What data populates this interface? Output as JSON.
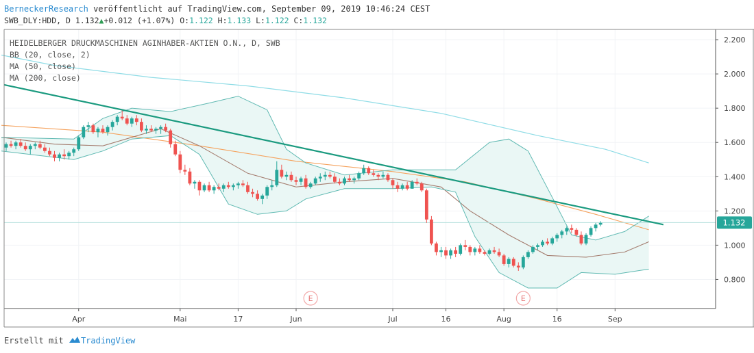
{
  "header": {
    "author": "BerneckerResearch",
    "published_text": "veröffentlicht auf TradingView.com, September 09, 2019 10:46:24 CEST",
    "symbol": "SWB_DLY:HDD, D",
    "last": "1.132",
    "change": "+0.012 (+1.07%)",
    "o_label": "O:",
    "o_value": "1.122",
    "h_label": "H:",
    "h_value": "1.133",
    "l_label": "L:",
    "l_value": "1.122",
    "c_label": "C:",
    "c_value": "1.132"
  },
  "legend": {
    "title": "HEIDELBERGER DRUCKMASCHINEN AGINHABER-AKTIEN O.N., D, SWB",
    "bb": "BB (20, close, 2)",
    "ma50": "MA (50, close)",
    "ma200": "MA (200, close)"
  },
  "footer": {
    "made_with": "Erstellt mit",
    "brand": "TradingView"
  },
  "colors": {
    "up": "#26a69a",
    "down": "#ef5350",
    "trendline": "#1a9a7f",
    "bb": "#5fb9b2",
    "bb_fill": "#eaf7f5",
    "ma50": "#a47c6e",
    "ma200": "#8fdce6",
    "ma_orange": "#f5a25d",
    "price_label_bg": "#26a69a"
  },
  "chart_data": {
    "type": "candlestick",
    "y_axis": {
      "ticks": [
        "2.200",
        "2.000",
        "1.800",
        "1.600",
        "1.400",
        "1.200",
        "1.000",
        "0.800"
      ],
      "range": [
        0.63,
        2.26
      ],
      "position": "right"
    },
    "x_axis": {
      "ticks": [
        "Apr",
        "Mai",
        "17",
        "Jun",
        "Jul",
        "16",
        "Aug",
        "16",
        "Sep"
      ]
    },
    "last_price_label": "1.132",
    "earnings_markers": [
      "E",
      "E"
    ],
    "candles": [
      [
        1.57,
        1.6,
        1.55,
        1.59
      ],
      [
        1.59,
        1.61,
        1.57,
        1.58
      ],
      [
        1.58,
        1.61,
        1.56,
        1.6
      ],
      [
        1.6,
        1.62,
        1.57,
        1.58
      ],
      [
        1.58,
        1.6,
        1.55,
        1.56
      ],
      [
        1.56,
        1.59,
        1.53,
        1.58
      ],
      [
        1.58,
        1.6,
        1.56,
        1.59
      ],
      [
        1.59,
        1.61,
        1.56,
        1.57
      ],
      [
        1.57,
        1.59,
        1.54,
        1.55
      ],
      [
        1.55,
        1.57,
        1.52,
        1.53
      ],
      [
        1.53,
        1.55,
        1.49,
        1.51
      ],
      [
        1.51,
        1.54,
        1.49,
        1.53
      ],
      [
        1.53,
        1.56,
        1.5,
        1.52
      ],
      [
        1.52,
        1.55,
        1.5,
        1.54
      ],
      [
        1.54,
        1.57,
        1.52,
        1.56
      ],
      [
        1.56,
        1.64,
        1.55,
        1.63
      ],
      [
        1.63,
        1.7,
        1.62,
        1.69
      ],
      [
        1.69,
        1.72,
        1.66,
        1.7
      ],
      [
        1.7,
        1.71,
        1.65,
        1.66
      ],
      [
        1.66,
        1.69,
        1.63,
        1.68
      ],
      [
        1.68,
        1.7,
        1.65,
        1.66
      ],
      [
        1.66,
        1.7,
        1.64,
        1.69
      ],
      [
        1.69,
        1.73,
        1.67,
        1.72
      ],
      [
        1.72,
        1.76,
        1.7,
        1.75
      ],
      [
        1.75,
        1.79,
        1.73,
        1.74
      ],
      [
        1.74,
        1.76,
        1.7,
        1.71
      ],
      [
        1.71,
        1.75,
        1.69,
        1.74
      ],
      [
        1.74,
        1.76,
        1.7,
        1.72
      ],
      [
        1.72,
        1.74,
        1.66,
        1.67
      ],
      [
        1.67,
        1.7,
        1.65,
        1.68
      ],
      [
        1.68,
        1.7,
        1.66,
        1.67
      ],
      [
        1.67,
        1.69,
        1.65,
        1.68
      ],
      [
        1.68,
        1.7,
        1.65,
        1.69
      ],
      [
        1.69,
        1.71,
        1.66,
        1.67
      ],
      [
        1.67,
        1.68,
        1.57,
        1.59
      ],
      [
        1.59,
        1.61,
        1.52,
        1.53
      ],
      [
        1.53,
        1.55,
        1.42,
        1.44
      ],
      [
        1.44,
        1.47,
        1.41,
        1.43
      ],
      [
        1.43,
        1.45,
        1.35,
        1.36
      ],
      [
        1.36,
        1.38,
        1.33,
        1.37
      ],
      [
        1.37,
        1.38,
        1.29,
        1.32
      ],
      [
        1.32,
        1.36,
        1.31,
        1.35
      ],
      [
        1.35,
        1.37,
        1.31,
        1.32
      ],
      [
        1.32,
        1.35,
        1.3,
        1.34
      ],
      [
        1.34,
        1.36,
        1.32,
        1.33
      ],
      [
        1.33,
        1.36,
        1.31,
        1.35
      ],
      [
        1.35,
        1.37,
        1.33,
        1.34
      ],
      [
        1.34,
        1.36,
        1.32,
        1.35
      ],
      [
        1.35,
        1.37,
        1.33,
        1.36
      ],
      [
        1.36,
        1.38,
        1.34,
        1.35
      ],
      [
        1.35,
        1.37,
        1.3,
        1.31
      ],
      [
        1.31,
        1.33,
        1.28,
        1.3
      ],
      [
        1.3,
        1.32,
        1.26,
        1.27
      ],
      [
        1.27,
        1.3,
        1.24,
        1.29
      ],
      [
        1.29,
        1.35,
        1.27,
        1.34
      ],
      [
        1.34,
        1.38,
        1.32,
        1.35
      ],
      [
        1.35,
        1.49,
        1.34,
        1.44
      ],
      [
        1.44,
        1.47,
        1.39,
        1.4
      ],
      [
        1.4,
        1.43,
        1.38,
        1.41
      ],
      [
        1.41,
        1.43,
        1.37,
        1.38
      ],
      [
        1.38,
        1.4,
        1.35,
        1.37
      ],
      [
        1.37,
        1.4,
        1.35,
        1.39
      ],
      [
        1.39,
        1.41,
        1.33,
        1.34
      ],
      [
        1.34,
        1.37,
        1.33,
        1.36
      ],
      [
        1.36,
        1.4,
        1.35,
        1.39
      ],
      [
        1.39,
        1.42,
        1.37,
        1.4
      ],
      [
        1.4,
        1.43,
        1.38,
        1.41
      ],
      [
        1.41,
        1.43,
        1.39,
        1.4
      ],
      [
        1.4,
        1.42,
        1.36,
        1.37
      ],
      [
        1.37,
        1.39,
        1.35,
        1.36
      ],
      [
        1.36,
        1.4,
        1.35,
        1.39
      ],
      [
        1.39,
        1.41,
        1.37,
        1.38
      ],
      [
        1.38,
        1.4,
        1.36,
        1.39
      ],
      [
        1.39,
        1.43,
        1.38,
        1.42
      ],
      [
        1.42,
        1.47,
        1.41,
        1.45
      ],
      [
        1.45,
        1.46,
        1.41,
        1.42
      ],
      [
        1.42,
        1.44,
        1.4,
        1.41
      ],
      [
        1.41,
        1.42,
        1.38,
        1.4
      ],
      [
        1.4,
        1.43,
        1.39,
        1.41
      ],
      [
        1.41,
        1.42,
        1.37,
        1.38
      ],
      [
        1.38,
        1.39,
        1.33,
        1.35
      ],
      [
        1.35,
        1.37,
        1.31,
        1.33
      ],
      [
        1.33,
        1.36,
        1.32,
        1.35
      ],
      [
        1.35,
        1.37,
        1.32,
        1.33
      ],
      [
        1.33,
        1.38,
        1.33,
        1.37
      ],
      [
        1.37,
        1.39,
        1.35,
        1.36
      ],
      [
        1.36,
        1.37,
        1.31,
        1.32
      ],
      [
        1.32,
        1.33,
        1.13,
        1.15
      ],
      [
        1.15,
        1.17,
        1.0,
        1.01
      ],
      [
        1.01,
        1.02,
        0.94,
        0.96
      ],
      [
        0.96,
        0.99,
        0.93,
        0.97
      ],
      [
        0.97,
        0.99,
        0.92,
        0.94
      ],
      [
        0.94,
        0.98,
        0.92,
        0.97
      ],
      [
        0.97,
        0.99,
        0.93,
        0.95
      ],
      [
        0.95,
        1.01,
        0.94,
        1.0
      ],
      [
        1.0,
        1.03,
        0.97,
        0.99
      ],
      [
        0.99,
        1.0,
        0.94,
        0.96
      ],
      [
        0.96,
        0.99,
        0.94,
        0.98
      ],
      [
        0.98,
        1.0,
        0.95,
        0.96
      ],
      [
        0.96,
        0.97,
        0.94,
        0.95
      ],
      [
        0.95,
        0.98,
        0.94,
        0.97
      ],
      [
        0.97,
        0.99,
        0.95,
        0.96
      ],
      [
        0.96,
        0.98,
        0.93,
        0.94
      ],
      [
        0.94,
        0.95,
        0.88,
        0.89
      ],
      [
        0.89,
        0.93,
        0.87,
        0.92
      ],
      [
        0.92,
        0.93,
        0.87,
        0.88
      ],
      [
        0.88,
        0.9,
        0.85,
        0.87
      ],
      [
        0.87,
        0.94,
        0.86,
        0.93
      ],
      [
        0.93,
        0.97,
        0.92,
        0.96
      ],
      [
        0.96,
        1.0,
        0.95,
        0.99
      ],
      [
        0.99,
        1.01,
        0.97,
        1.0
      ],
      [
        1.0,
        1.03,
        0.99,
        1.02
      ],
      [
        1.02,
        1.04,
        1.0,
        1.01
      ],
      [
        1.01,
        1.05,
        1.0,
        1.04
      ],
      [
        1.04,
        1.07,
        1.02,
        1.06
      ],
      [
        1.06,
        1.09,
        1.04,
        1.08
      ],
      [
        1.08,
        1.11,
        1.06,
        1.1
      ],
      [
        1.1,
        1.12,
        1.07,
        1.09
      ],
      [
        1.09,
        1.1,
        1.05,
        1.06
      ],
      [
        1.06,
        1.08,
        1.0,
        1.01
      ],
      [
        1.01,
        1.07,
        1.0,
        1.06
      ],
      [
        1.06,
        1.11,
        1.05,
        1.1
      ],
      [
        1.1,
        1.13,
        1.08,
        1.12
      ],
      [
        1.12,
        1.14,
        1.11,
        1.13
      ]
    ],
    "trendline": [
      [
        -1,
        1.94
      ],
      [
        136,
        1.12
      ]
    ],
    "ma200": [
      [
        -1,
        2.11
      ],
      [
        10,
        2.05
      ],
      [
        30,
        1.98
      ],
      [
        50,
        1.93
      ],
      [
        70,
        1.86
      ],
      [
        90,
        1.77
      ],
      [
        110,
        1.64
      ],
      [
        124,
        1.56
      ],
      [
        133,
        1.48
      ]
    ],
    "ma_orange": [
      [
        -1,
        1.7
      ],
      [
        20,
        1.66
      ],
      [
        40,
        1.58
      ],
      [
        60,
        1.49
      ],
      [
        80,
        1.43
      ],
      [
        95,
        1.37
      ],
      [
        110,
        1.27
      ],
      [
        122,
        1.18
      ],
      [
        133,
        1.09
      ]
    ],
    "ma50": [
      [
        -1,
        1.63
      ],
      [
        10,
        1.59
      ],
      [
        20,
        1.58
      ],
      [
        32,
        1.68
      ],
      [
        40,
        1.58
      ],
      [
        50,
        1.42
      ],
      [
        60,
        1.34
      ],
      [
        70,
        1.37
      ],
      [
        80,
        1.39
      ],
      [
        90,
        1.34
      ],
      [
        96,
        1.2
      ],
      [
        104,
        1.06
      ],
      [
        112,
        0.94
      ],
      [
        120,
        0.93
      ],
      [
        128,
        0.96
      ],
      [
        133,
        1.02
      ]
    ],
    "bb_upper": [
      [
        -1,
        1.63
      ],
      [
        14,
        1.62
      ],
      [
        20,
        1.74
      ],
      [
        26,
        1.8
      ],
      [
        34,
        1.78
      ],
      [
        42,
        1.83
      ],
      [
        48,
        1.87
      ],
      [
        54,
        1.79
      ],
      [
        58,
        1.56
      ],
      [
        62,
        1.48
      ],
      [
        70,
        1.41
      ],
      [
        80,
        1.44
      ],
      [
        88,
        1.44
      ],
      [
        93,
        1.44
      ],
      [
        100,
        1.6
      ],
      [
        104,
        1.62
      ],
      [
        108,
        1.55
      ],
      [
        113,
        1.28
      ],
      [
        117,
        1.06
      ],
      [
        122,
        1.03
      ],
      [
        128,
        1.08
      ],
      [
        133,
        1.17
      ]
    ],
    "bb_lower": [
      [
        -1,
        1.55
      ],
      [
        14,
        1.5
      ],
      [
        20,
        1.55
      ],
      [
        26,
        1.62
      ],
      [
        34,
        1.64
      ],
      [
        40,
        1.53
      ],
      [
        46,
        1.24
      ],
      [
        52,
        1.18
      ],
      [
        58,
        1.2
      ],
      [
        62,
        1.27
      ],
      [
        70,
        1.33
      ],
      [
        80,
        1.33
      ],
      [
        88,
        1.34
      ],
      [
        93,
        1.31
      ],
      [
        97,
        1.05
      ],
      [
        102,
        0.84
      ],
      [
        108,
        0.75
      ],
      [
        114,
        0.75
      ],
      [
        119,
        0.84
      ],
      [
        126,
        0.83
      ],
      [
        133,
        0.86
      ]
    ]
  }
}
